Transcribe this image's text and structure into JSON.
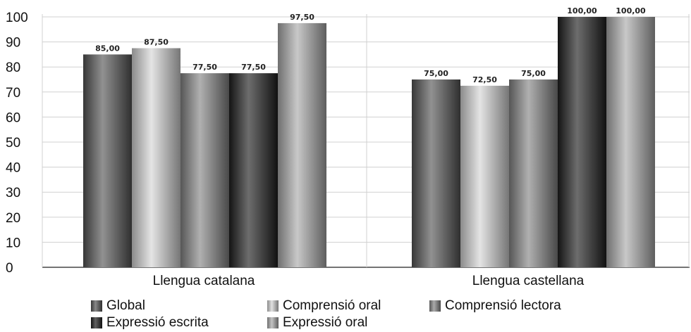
{
  "chart_data": {
    "type": "bar",
    "title": "",
    "xlabel": "",
    "ylabel": "",
    "categories": [
      "Llengua catalana",
      "Llengua castellana"
    ],
    "ylim": [
      0,
      100
    ],
    "yticks": [
      0,
      10,
      20,
      30,
      40,
      50,
      60,
      70,
      80,
      90,
      100
    ],
    "grid": {
      "horizontal": true,
      "vertical_category_separators": true
    },
    "legend_position": "bottom",
    "series": [
      {
        "name": "Global",
        "values": [
          85.0,
          75.0
        ],
        "labels": [
          "85,00",
          "75,00"
        ],
        "color": "#555555"
      },
      {
        "name": "Comprensió oral",
        "values": [
          87.5,
          72.5
        ],
        "labels": [
          "87,50",
          "72,50"
        ],
        "color": "#d6d6d6"
      },
      {
        "name": "Comprensió lectora",
        "values": [
          77.5,
          75.0
        ],
        "labels": [
          "77,50",
          "75,00"
        ],
        "color": "#858585"
      },
      {
        "name": "Expressió escrita",
        "values": [
          77.5,
          100.0
        ],
        "labels": [
          "77,50",
          "100,00"
        ],
        "color": "#1e1e1e"
      },
      {
        "name": "Expressió oral",
        "values": [
          97.5,
          100.0
        ],
        "labels": [
          "97,50",
          "100,00"
        ],
        "color": "#ababab"
      }
    ]
  }
}
